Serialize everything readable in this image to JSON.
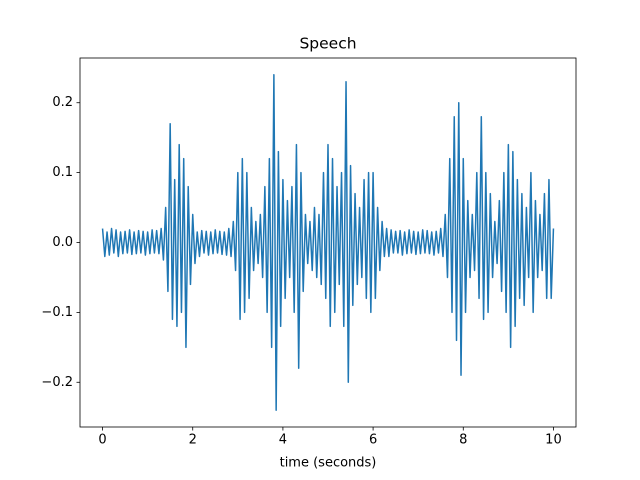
{
  "chart_data": {
    "type": "line",
    "title": "Speech",
    "xlabel": "time (seconds)",
    "x": [
      0,
      0.05,
      0.1,
      0.15,
      0.2,
      0.25,
      0.3,
      0.35,
      0.4,
      0.45,
      0.5,
      0.55,
      0.6,
      0.65,
      0.7,
      0.75,
      0.8,
      0.85,
      0.9,
      0.95,
      1,
      1.05,
      1.1,
      1.15,
      1.2,
      1.25,
      1.3,
      1.35,
      1.4,
      1.45,
      1.5,
      1.55,
      1.6,
      1.65,
      1.7,
      1.75,
      1.8,
      1.85,
      1.9,
      1.95,
      2,
      2.05,
      2.1,
      2.15,
      2.2,
      2.25,
      2.3,
      2.35,
      2.4,
      2.45,
      2.5,
      2.55,
      2.6,
      2.65,
      2.7,
      2.75,
      2.8,
      2.85,
      2.9,
      2.95,
      3,
      3.05,
      3.1,
      3.15,
      3.2,
      3.25,
      3.3,
      3.35,
      3.4,
      3.45,
      3.5,
      3.55,
      3.6,
      3.65,
      3.7,
      3.75,
      3.8,
      3.85,
      3.9,
      3.95,
      4,
      4.05,
      4.1,
      4.15,
      4.2,
      4.25,
      4.3,
      4.35,
      4.4,
      4.45,
      4.5,
      4.55,
      4.6,
      4.65,
      4.7,
      4.75,
      4.8,
      4.85,
      4.9,
      4.95,
      5,
      5.05,
      5.1,
      5.15,
      5.2,
      5.25,
      5.3,
      5.35,
      5.4,
      5.45,
      5.5,
      5.55,
      5.6,
      5.65,
      5.7,
      5.75,
      5.8,
      5.85,
      5.9,
      5.95,
      6,
      6.05,
      6.1,
      6.15,
      6.2,
      6.25,
      6.3,
      6.35,
      6.4,
      6.45,
      6.5,
      6.55,
      6.6,
      6.65,
      6.7,
      6.75,
      6.8,
      6.85,
      6.9,
      6.95,
      7,
      7.05,
      7.1,
      7.15,
      7.2,
      7.25,
      7.3,
      7.35,
      7.4,
      7.45,
      7.5,
      7.55,
      7.6,
      7.65,
      7.7,
      7.75,
      7.8,
      7.85,
      7.9,
      7.95,
      8,
      8.05,
      8.1,
      8.15,
      8.2,
      8.25,
      8.3,
      8.35,
      8.4,
      8.45,
      8.5,
      8.55,
      8.6,
      8.65,
      8.7,
      8.75,
      8.8,
      8.85,
      8.9,
      8.95,
      9,
      9.05,
      9.1,
      9.15,
      9.2,
      9.25,
      9.3,
      9.35,
      9.4,
      9.45,
      9.5,
      9.55,
      9.6,
      9.65,
      9.7,
      9.75,
      9.8,
      9.85,
      9.9,
      9.95,
      10
    ],
    "series": [
      {
        "name": "Speech",
        "color": "#1f77b4",
        "values": [
          0.02,
          -0.02,
          0.015,
          -0.018,
          0.02,
          -0.015,
          0.018,
          -0.02,
          0.015,
          -0.016,
          0.016,
          -0.015,
          0.018,
          -0.017,
          0.015,
          -0.016,
          0.017,
          -0.015,
          0.016,
          -0.018,
          0.015,
          -0.016,
          0.018,
          -0.015,
          0.017,
          -0.016,
          0.02,
          -0.025,
          0.05,
          -0.07,
          0.17,
          -0.11,
          0.09,
          -0.12,
          0.14,
          -0.1,
          0.12,
          -0.15,
          0.08,
          -0.06,
          0.04,
          -0.03,
          0.015,
          -0.02,
          0.017,
          -0.015,
          0.016,
          -0.018,
          0.015,
          -0.016,
          0.018,
          -0.015,
          0.016,
          -0.017,
          0.015,
          -0.018,
          0.02,
          -0.02,
          0.03,
          -0.04,
          0.1,
          -0.11,
          0.12,
          -0.1,
          0.1,
          -0.08,
          0.05,
          -0.04,
          0.03,
          -0.03,
          0.04,
          -0.05,
          0.08,
          -0.1,
          0.12,
          -0.15,
          0.24,
          -0.24,
          0.13,
          -0.12,
          0.09,
          -0.08,
          0.06,
          -0.05,
          0.08,
          -0.1,
          0.14,
          -0.18,
          0.1,
          -0.07,
          0.04,
          -0.03,
          0.03,
          -0.04,
          0.05,
          -0.05,
          0.04,
          -0.06,
          0.1,
          -0.08,
          0.14,
          -0.12,
          0.12,
          -0.1,
          0.08,
          -0.06,
          0.1,
          -0.12,
          0.23,
          -0.2,
          0.11,
          -0.09,
          0.07,
          -0.06,
          0.05,
          -0.05,
          0.09,
          -0.08,
          0.1,
          -0.1,
          0.1,
          -0.08,
          0.05,
          -0.04,
          0.03,
          -0.02,
          0.02,
          -0.02,
          0.018,
          -0.015,
          0.016,
          -0.015,
          0.017,
          -0.018,
          0.015,
          -0.016,
          0.018,
          -0.015,
          0.016,
          -0.017,
          0.015,
          -0.016,
          0.018,
          -0.015,
          0.017,
          -0.016,
          0.015,
          -0.018,
          0.016,
          -0.015,
          0.02,
          -0.02,
          0.04,
          -0.05,
          0.12,
          -0.1,
          0.18,
          -0.14,
          0.2,
          -0.19,
          0.12,
          -0.1,
          0.06,
          -0.05,
          0.04,
          -0.04,
          0.1,
          -0.08,
          0.18,
          -0.11,
          0.1,
          -0.1,
          0.07,
          -0.05,
          0.03,
          -0.03,
          0.06,
          -0.07,
          0.1,
          -0.1,
          0.14,
          -0.15,
          0.13,
          -0.12,
          0.09,
          -0.08,
          0.07,
          -0.09,
          0.05,
          -0.05,
          0.1,
          -0.1,
          0.06,
          -0.05,
          0.04,
          -0.04,
          0.07,
          -0.08,
          0.09,
          -0.08,
          0.02
        ]
      }
    ],
    "xlim": [
      -0.5,
      10.5
    ],
    "xticks": [
      0,
      2,
      4,
      6,
      8,
      10
    ],
    "ylim": [
      -0.264,
      0.264
    ],
    "yticks": [
      {
        "value": -0.2,
        "label": "−0.2"
      },
      {
        "value": -0.1,
        "label": "−0.1"
      },
      {
        "value": 0,
        "label": "0.0"
      },
      0.1,
      0.2
    ]
  }
}
